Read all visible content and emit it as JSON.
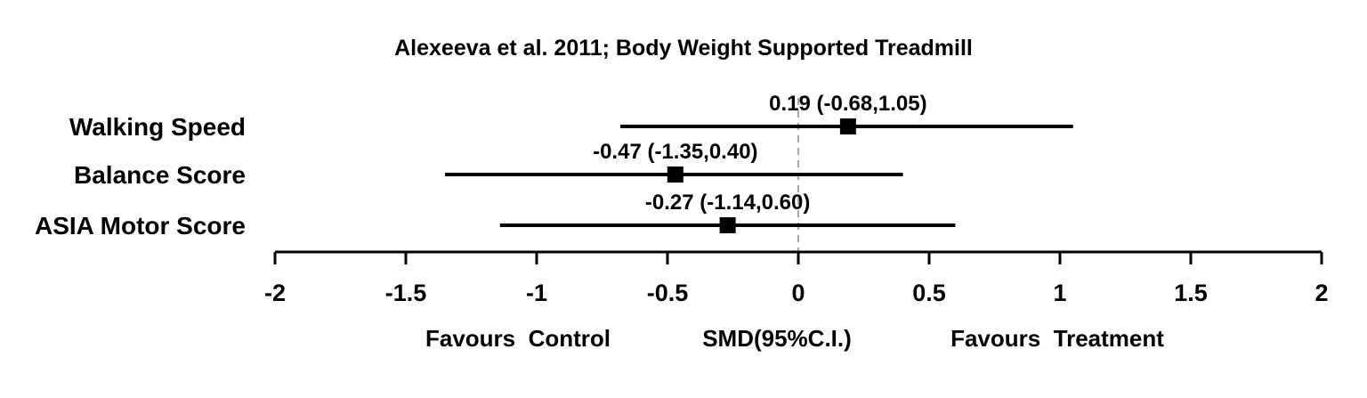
{
  "chart_data": {
    "type": "forest",
    "title": "Alexeeva et al. 2011; Body Weight Supported Treadmill",
    "xlim": [
      -2,
      2
    ],
    "x_ticks": [
      -2,
      -1.5,
      -1,
      -0.5,
      0,
      0.5,
      1,
      1.5,
      2
    ],
    "x_tick_labels": [
      "-2",
      "-1.5",
      "-1",
      "-0.5",
      "0",
      "0.5",
      "1",
      "1.5",
      "2"
    ],
    "reference_line": 0,
    "reference_line_style": "dashed grey",
    "xlabel": "SMD(95%C.I.)",
    "favours_left": "Favours  Control",
    "favours_right": "Favours  Treatment",
    "rows": [
      {
        "label": "Walking Speed",
        "estimate": 0.19,
        "lower": -0.68,
        "upper": 1.05,
        "annotation": "0.19 (-0.68,1.05)"
      },
      {
        "label": "Balance Score",
        "estimate": -0.47,
        "lower": -1.35,
        "upper": 0.4,
        "annotation": "-0.47 (-1.35,0.40)"
      },
      {
        "label": "ASIA Motor Score",
        "estimate": -0.27,
        "lower": -1.14,
        "upper": 0.6,
        "annotation": "-0.27 (-1.14,0.60)"
      }
    ],
    "colors": {
      "marks": "#000000",
      "reference": "#a6a6a6"
    }
  }
}
